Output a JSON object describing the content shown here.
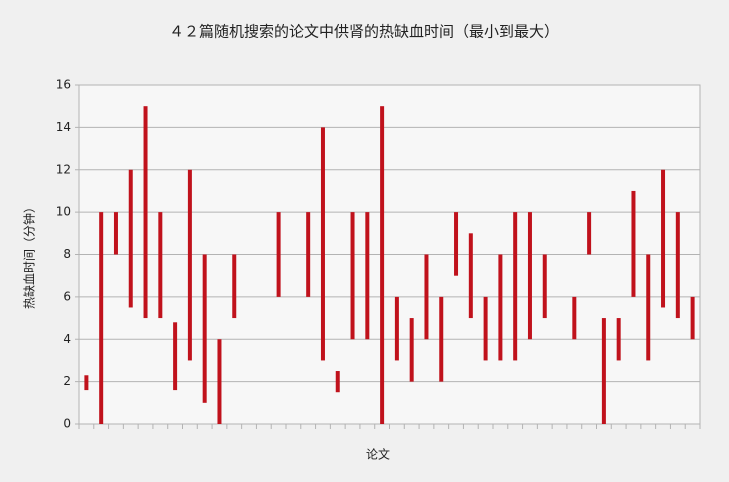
{
  "chart_data": {
    "type": "range-bar",
    "title": "４２篇随机搜索的论文中供肾的热缺血时间（最小到最大）",
    "x_label": "论文",
    "y_label": "热缺血时间（分钟）",
    "categories": [
      null,
      null,
      null,
      null,
      null,
      null,
      null,
      null,
      null,
      null,
      null,
      null,
      null,
      null,
      null,
      null,
      null,
      null,
      null,
      null,
      null,
      null,
      null,
      null,
      null,
      null,
      null,
      null,
      null,
      null,
      null,
      null,
      null,
      null,
      null,
      null,
      null,
      null,
      null,
      null,
      null,
      null
    ],
    "low": [
      1.6,
      0,
      8,
      5.5,
      5,
      5,
      1.6,
      3,
      1,
      0,
      5,
      null,
      null,
      6,
      null,
      6,
      3,
      1.5,
      4,
      4,
      0,
      3,
      2,
      4,
      2,
      7,
      5,
      3,
      3,
      3,
      4,
      5,
      null,
      4,
      8,
      0,
      3,
      6,
      3,
      5.5,
      5,
      4
    ],
    "high": [
      2.3,
      10,
      10,
      12,
      15,
      10,
      4.8,
      12,
      8,
      4,
      8,
      null,
      null,
      10,
      null,
      10,
      14,
      2.5,
      10,
      10,
      15,
      6,
      5,
      8,
      6,
      10,
      9,
      6,
      8,
      10,
      10,
      8,
      null,
      6,
      10,
      5,
      5,
      11,
      8,
      12,
      10,
      6
    ],
    "color": "#c0121c",
    "ylim": [
      0,
      16
    ],
    "yticks": [
      0,
      2,
      4,
      6,
      8,
      10,
      12,
      14,
      16
    ],
    "grid": true
  }
}
